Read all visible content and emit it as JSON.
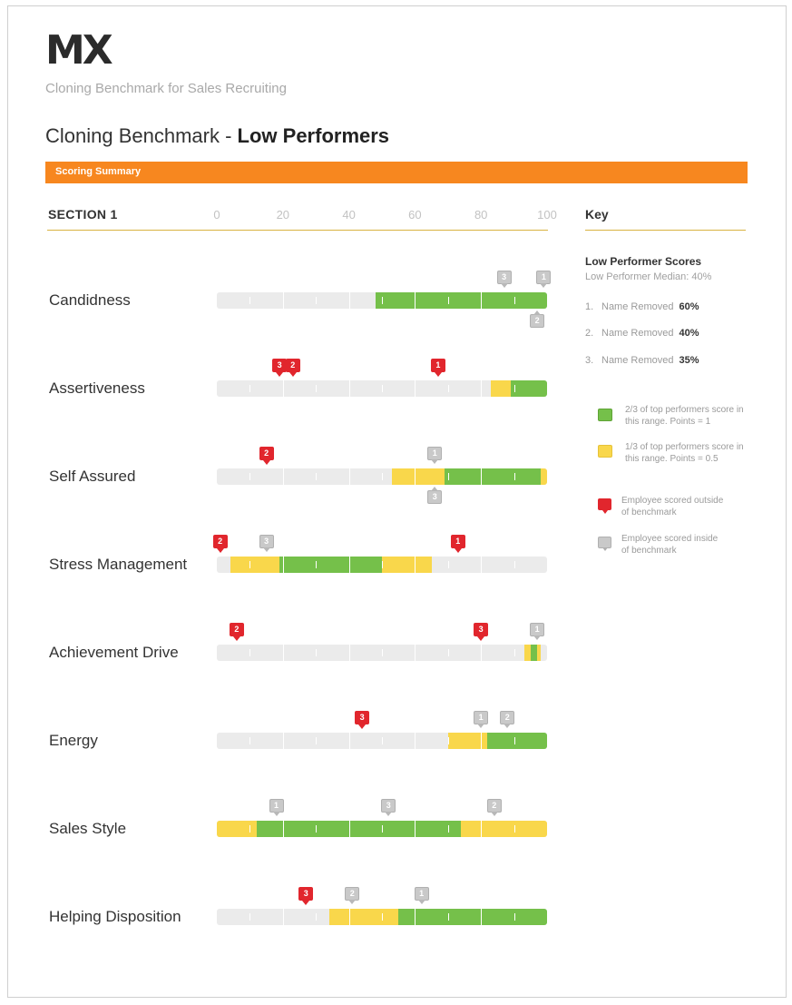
{
  "header": {
    "logo": "MX",
    "subtitle": "Cloning Benchmark for Sales Recruiting",
    "title_prefix": "Cloning Benchmark - ",
    "title_bold": "Low Performers",
    "bar_label": "Scoring Summary"
  },
  "section_label": "SECTION 1",
  "key": {
    "label": "Key",
    "title": "Low Performer Scores",
    "median": "Low Performer Median: 40%",
    "employees": [
      {
        "num": "1.",
        "name": "Name Removed",
        "score": "60%"
      },
      {
        "num": "2.",
        "name": "Name Removed",
        "score": "40%"
      },
      {
        "num": "3.",
        "name": "Name Removed",
        "score": "35%"
      }
    ],
    "legend": {
      "green": "2/3 of top performers score in this range. Points = 1",
      "yellow": "1/3 of top performers score in this range. Points = 0.5",
      "red": "Employee scored outside of benchmark",
      "gray": "Employee scored inside of benchmark"
    }
  },
  "colors": {
    "accent": "#f7871f",
    "green": "#75c04a",
    "yellow": "#f9d74b",
    "red": "#e1262d",
    "gray": "#c9c9c9",
    "track": "#ebebeb"
  },
  "chart_data": {
    "type": "bar",
    "xlim": [
      0,
      100
    ],
    "ticks": [
      0,
      20,
      40,
      60,
      80,
      100
    ],
    "rows": [
      {
        "label": "Candidness",
        "ranges": [
          {
            "color": "green",
            "from": 48,
            "to": 100
          }
        ],
        "markers": [
          {
            "id": "3",
            "value": 87,
            "status": "inside",
            "pos": "above"
          },
          {
            "id": "1",
            "value": 99,
            "status": "inside",
            "pos": "above"
          },
          {
            "id": "2",
            "value": 97,
            "status": "inside",
            "pos": "below"
          }
        ]
      },
      {
        "label": "Assertiveness",
        "ranges": [
          {
            "color": "yellow",
            "from": 83,
            "to": 89
          },
          {
            "color": "green",
            "from": 89,
            "to": 100
          }
        ],
        "markers": [
          {
            "id": "3",
            "value": 19,
            "status": "outside",
            "pos": "above"
          },
          {
            "id": "2",
            "value": 23,
            "status": "outside",
            "pos": "above"
          },
          {
            "id": "1",
            "value": 67,
            "status": "outside",
            "pos": "above"
          }
        ]
      },
      {
        "label": "Self Assured",
        "ranges": [
          {
            "color": "yellow",
            "from": 53,
            "to": 69
          },
          {
            "color": "green",
            "from": 69,
            "to": 98
          },
          {
            "color": "yellow",
            "from": 98,
            "to": 100
          }
        ],
        "markers": [
          {
            "id": "2",
            "value": 15,
            "status": "outside",
            "pos": "above"
          },
          {
            "id": "1",
            "value": 66,
            "status": "inside",
            "pos": "above"
          },
          {
            "id": "3",
            "value": 66,
            "status": "inside",
            "pos": "below"
          }
        ]
      },
      {
        "label": "Stress Management",
        "ranges": [
          {
            "color": "yellow",
            "from": 4,
            "to": 19
          },
          {
            "color": "green",
            "from": 19,
            "to": 50
          },
          {
            "color": "yellow",
            "from": 50,
            "to": 65
          }
        ],
        "markers": [
          {
            "id": "2",
            "value": 1,
            "status": "outside",
            "pos": "above"
          },
          {
            "id": "3",
            "value": 15,
            "status": "inside",
            "pos": "above"
          },
          {
            "id": "1",
            "value": 73,
            "status": "outside",
            "pos": "above"
          }
        ]
      },
      {
        "label": "Achievement Drive",
        "ranges": [
          {
            "color": "yellow",
            "from": 93,
            "to": 98
          },
          {
            "color": "green",
            "from": 95,
            "to": 97
          }
        ],
        "markers": [
          {
            "id": "2",
            "value": 6,
            "status": "outside",
            "pos": "above"
          },
          {
            "id": "3",
            "value": 80,
            "status": "outside",
            "pos": "above"
          },
          {
            "id": "1",
            "value": 97,
            "status": "inside",
            "pos": "above"
          }
        ]
      },
      {
        "label": "Energy",
        "ranges": [
          {
            "color": "yellow",
            "from": 70,
            "to": 82
          },
          {
            "color": "green",
            "from": 82,
            "to": 100
          }
        ],
        "markers": [
          {
            "id": "3",
            "value": 44,
            "status": "outside",
            "pos": "above"
          },
          {
            "id": "1",
            "value": 80,
            "status": "inside",
            "pos": "above"
          },
          {
            "id": "2",
            "value": 88,
            "status": "inside",
            "pos": "above"
          }
        ]
      },
      {
        "label": "Sales Style",
        "ranges": [
          {
            "color": "yellow",
            "from": 0,
            "to": 12
          },
          {
            "color": "green",
            "from": 12,
            "to": 74
          },
          {
            "color": "yellow",
            "from": 74,
            "to": 100
          }
        ],
        "markers": [
          {
            "id": "1",
            "value": 18,
            "status": "inside",
            "pos": "above"
          },
          {
            "id": "3",
            "value": 52,
            "status": "inside",
            "pos": "above"
          },
          {
            "id": "2",
            "value": 84,
            "status": "inside",
            "pos": "above"
          }
        ]
      },
      {
        "label": "Helping Disposition",
        "ranges": [
          {
            "color": "yellow",
            "from": 34,
            "to": 55
          },
          {
            "color": "green",
            "from": 55,
            "to": 100
          }
        ],
        "markers": [
          {
            "id": "3",
            "value": 27,
            "status": "outside",
            "pos": "above"
          },
          {
            "id": "2",
            "value": 41,
            "status": "inside",
            "pos": "above"
          },
          {
            "id": "1",
            "value": 62,
            "status": "inside",
            "pos": "above"
          }
        ]
      }
    ]
  }
}
